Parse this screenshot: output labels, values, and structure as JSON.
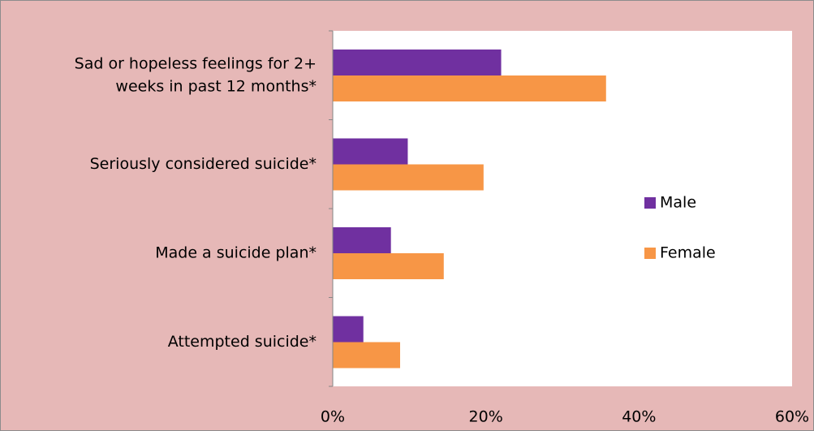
{
  "chart_data": {
    "type": "bar",
    "orientation": "horizontal",
    "categories": [
      [
        "Sad or hopeless feelings for 2+",
        "weeks in past 12 months*"
      ],
      [
        "Seriously considered suicide*"
      ],
      [
        "Made a suicide plan*"
      ],
      [
        "Attempted suicide*"
      ]
    ],
    "series": [
      {
        "name": "Male",
        "color": "#7030a0",
        "values": [
          22.0,
          9.8,
          7.6,
          4.0
        ]
      },
      {
        "name": "Female",
        "color": "#f79646",
        "values": [
          35.7,
          19.7,
          14.5,
          8.8
        ]
      }
    ],
    "x_ticks": [
      "0%",
      "20%",
      "40%",
      "60%"
    ],
    "xlim": [
      0,
      60
    ],
    "grid": false,
    "legend_position": "right",
    "colors": {
      "background": "#e6b8b7",
      "plot_area": "#ffffff"
    }
  }
}
